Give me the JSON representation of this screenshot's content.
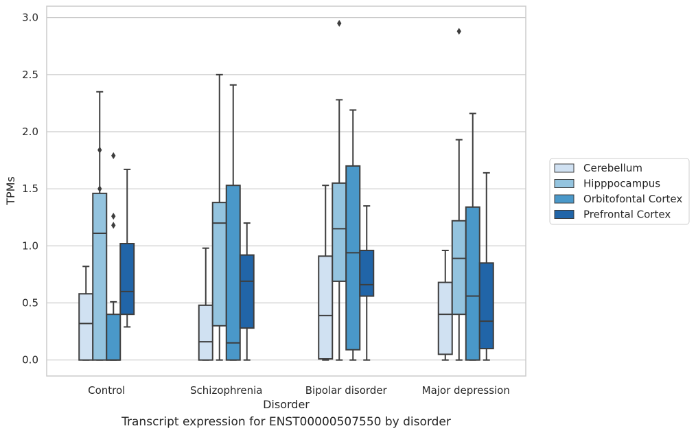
{
  "chart_data": {
    "type": "box",
    "ylabel": "TPMs",
    "xlabel": "Disorder",
    "caption": "Transcript expression for ENST00000507550 by disorder",
    "ylim": [
      -0.14,
      3.1
    ],
    "yticks": [
      "0.0",
      "0.5",
      "1.0",
      "1.5",
      "2.0",
      "2.5",
      "3.0"
    ],
    "grid": "horizontal",
    "legend_position": "right",
    "categories": [
      "Control",
      "Schizophrenia",
      "Bipolar disorder",
      "Major depression"
    ],
    "series": [
      {
        "name": "Cerebellum",
        "color": "#d0e1f2",
        "boxes": [
          {
            "whislo": 0.0,
            "q1": 0.0,
            "med": 0.32,
            "q3": 0.58,
            "whishi": 0.82,
            "fliers": []
          },
          {
            "whislo": 0.0,
            "q1": 0.0,
            "med": 0.16,
            "q3": 0.48,
            "whishi": 0.98,
            "fliers": []
          },
          {
            "whislo": 0.0,
            "q1": 0.01,
            "med": 0.39,
            "q3": 0.91,
            "whishi": 1.53,
            "fliers": []
          },
          {
            "whislo": 0.0,
            "q1": 0.05,
            "med": 0.4,
            "q3": 0.68,
            "whishi": 0.96,
            "fliers": []
          }
        ]
      },
      {
        "name": "Hipppocampus",
        "color": "#94c4df",
        "boxes": [
          {
            "whislo": 0.0,
            "q1": 0.0,
            "med": 1.11,
            "q3": 1.46,
            "whishi": 2.35,
            "fliers": [
              1.5,
              1.84
            ]
          },
          {
            "whislo": 0.0,
            "q1": 0.3,
            "med": 1.2,
            "q3": 1.38,
            "whishi": 2.5,
            "fliers": []
          },
          {
            "whislo": 0.0,
            "q1": 0.69,
            "med": 1.15,
            "q3": 1.55,
            "whishi": 2.28,
            "fliers": [
              2.95
            ]
          },
          {
            "whislo": 0.0,
            "q1": 0.4,
            "med": 0.89,
            "q3": 1.22,
            "whishi": 1.93,
            "fliers": [
              2.88
            ]
          }
        ]
      },
      {
        "name": "Orbitofontal Cortex",
        "color": "#4a98c9",
        "boxes": [
          {
            "whislo": 0.0,
            "q1": 0.0,
            "med": 0.0,
            "q3": 0.4,
            "whishi": 0.51,
            "fliers": [
              1.18,
              1.26,
              1.79
            ]
          },
          {
            "whislo": 0.0,
            "q1": 0.0,
            "med": 0.15,
            "q3": 1.53,
            "whishi": 2.41,
            "fliers": []
          },
          {
            "whislo": 0.0,
            "q1": 0.09,
            "med": 0.94,
            "q3": 1.7,
            "whishi": 2.19,
            "fliers": []
          },
          {
            "whislo": 0.0,
            "q1": 0.0,
            "med": 0.56,
            "q3": 1.34,
            "whishi": 2.16,
            "fliers": []
          }
        ]
      },
      {
        "name": "Prefrontal Cortex",
        "color": "#2165a8",
        "boxes": [
          {
            "whislo": 0.29,
            "q1": 0.4,
            "med": 0.6,
            "q3": 1.02,
            "whishi": 1.67,
            "fliers": []
          },
          {
            "whislo": 0.0,
            "q1": 0.28,
            "med": 0.69,
            "q3": 0.92,
            "whishi": 1.2,
            "fliers": []
          },
          {
            "whislo": 0.0,
            "q1": 0.56,
            "med": 0.66,
            "q3": 0.96,
            "whishi": 1.35,
            "fliers": []
          },
          {
            "whislo": 0.0,
            "q1": 0.1,
            "med": 0.34,
            "q3": 0.85,
            "whishi": 1.64,
            "fliers": []
          }
        ]
      }
    ]
  }
}
